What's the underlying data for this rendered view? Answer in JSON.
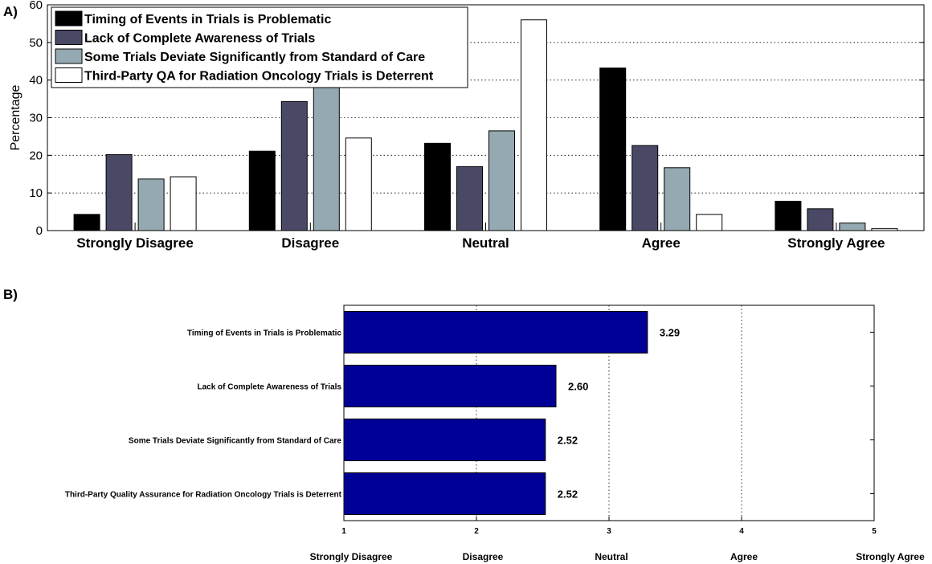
{
  "panel_a_label": "A)",
  "panel_b_label": "B)",
  "chart_data": [
    {
      "type": "bar",
      "ylabel": "Percentage",
      "xlabel": "",
      "ylim": [
        0,
        60
      ],
      "yticks": [
        0,
        10,
        20,
        30,
        40,
        50,
        60
      ],
      "grid": "horizontal dotted",
      "legend_position": "top-left",
      "categories": [
        "Strongly Disagree",
        "Disagree",
        "Neutral",
        "Agree",
        "Strongly Agree"
      ],
      "series": [
        {
          "name": "Timing of Events in Trials is Problematic",
          "color": "#000000",
          "values": [
            4.3,
            21.1,
            23.2,
            43.2,
            7.8
          ]
        },
        {
          "name": "Lack of Complete Awareness of Trials",
          "color": "#494966",
          "values": [
            20.2,
            34.3,
            17.0,
            22.6,
            5.8
          ]
        },
        {
          "name": "Some Trials Deviate Significantly from Standard of Care",
          "color": "#94a9b1",
          "values": [
            13.7,
            41.0,
            26.5,
            16.7,
            2.0
          ]
        },
        {
          "name": "Third-Party QA for Radiation Oncology Trials is Deterrent",
          "color": "#ffffff",
          "values": [
            14.3,
            24.6,
            56.0,
            4.3,
            0.5
          ]
        }
      ]
    },
    {
      "type": "bar",
      "orientation": "horizontal",
      "xlim": [
        1,
        5
      ],
      "xticks": [
        1,
        2,
        3,
        4,
        5
      ],
      "xtick_categories": [
        "Strongly Disagree",
        "Disagree",
        "Neutral",
        "Agree",
        "Strongly Agree"
      ],
      "grid": "vertical dotted",
      "bar_color": "#000096",
      "categories": [
        "Timing of Events in Trials is Problematic",
        "Lack of Complete Awareness of Trials",
        "Some Trials Deviate Significantly from Standard of Care",
        "Third-Party Quality Assurance for Radiation Oncology Trials is Deterrent"
      ],
      "values": [
        3.29,
        2.6,
        2.52,
        2.52
      ],
      "value_labels": [
        "3.29",
        "2.60",
        "2.52",
        "2.52"
      ]
    }
  ]
}
